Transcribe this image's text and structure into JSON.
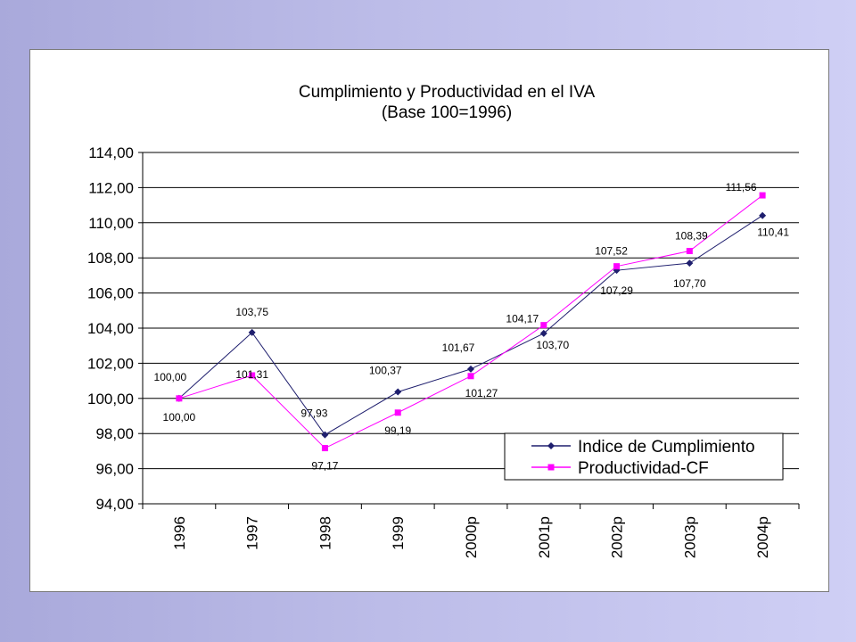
{
  "chart_data": {
    "type": "line",
    "title": "Cumplimiento y Productividad en el IVA",
    "subtitle": "(Base 100=1996)",
    "categories": [
      "1996",
      "1997",
      "1998",
      "1999",
      "2000p",
      "2001p",
      "2002p",
      "2003p",
      "2004p"
    ],
    "ylim": [
      94,
      114
    ],
    "yticks": [
      "94,00",
      "96,00",
      "98,00",
      "100,00",
      "102,00",
      "104,00",
      "106,00",
      "108,00",
      "110,00",
      "112,00",
      "114,00"
    ],
    "grid": true,
    "legend_position": "bottom-right",
    "series": [
      {
        "name": "Indice de Cumplimiento",
        "color": "#1f1f6e",
        "marker": "diamond",
        "values": [
          100.0,
          103.75,
          97.93,
          100.37,
          101.67,
          103.7,
          107.29,
          107.7,
          110.41
        ],
        "labels": [
          "100,00",
          "103,75",
          "97,93",
          "100,37",
          "101,67",
          "103,70",
          "107,29",
          "107,70",
          "110,41"
        ]
      },
      {
        "name": "Productividad-CF",
        "color": "#ff00ff",
        "marker": "square",
        "values": [
          100.0,
          101.31,
          97.17,
          99.19,
          101.27,
          104.17,
          107.52,
          108.39,
          111.56
        ],
        "labels": [
          "100,00",
          "101,31",
          "97,17",
          "99,19",
          "101,27",
          "104,17",
          "107,52",
          "108,39",
          "111,56"
        ]
      }
    ]
  }
}
